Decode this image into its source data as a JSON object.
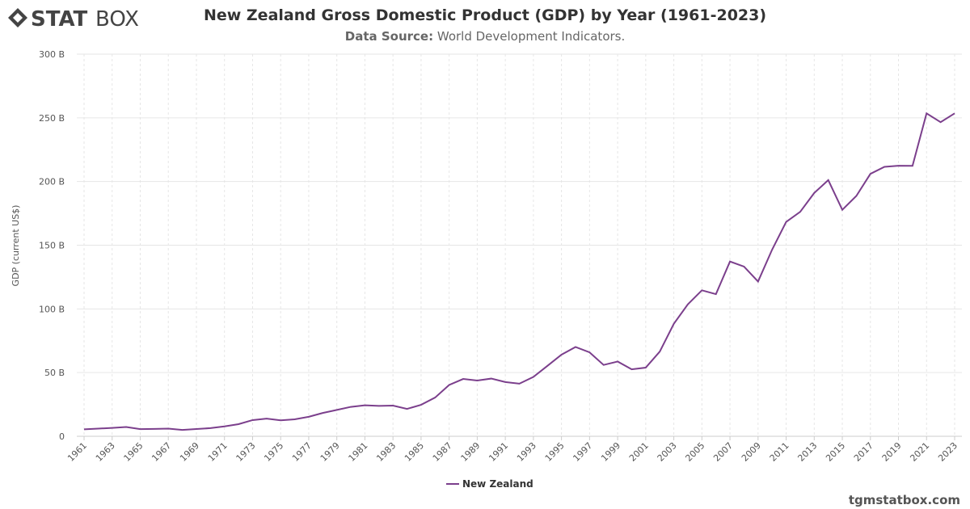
{
  "logo": {
    "bold": "STAT",
    "light": "BOX"
  },
  "footer": "tgmstatbox.com",
  "chart_data": {
    "type": "line",
    "title": "New Zealand Gross Domestic Product (GDP) by Year (1961-2023)",
    "subtitle_label": "Data Source:",
    "subtitle": "World Development Indicators.",
    "y_label": "GDP (current US$)",
    "x": [
      1961,
      1962,
      1963,
      1964,
      1965,
      1966,
      1967,
      1968,
      1969,
      1970,
      1971,
      1972,
      1973,
      1974,
      1975,
      1976,
      1977,
      1978,
      1979,
      1980,
      1981,
      1982,
      1983,
      1984,
      1985,
      1986,
      1987,
      1988,
      1989,
      1990,
      1991,
      1992,
      1993,
      1994,
      1995,
      1996,
      1997,
      1998,
      1999,
      2000,
      2001,
      2002,
      2003,
      2004,
      2005,
      2006,
      2007,
      2008,
      2009,
      2010,
      2011,
      2012,
      2013,
      2014,
      2015,
      2016,
      2017,
      2018,
      2019,
      2020,
      2021,
      2022,
      2023
    ],
    "series": [
      {
        "name": "New Zealand",
        "color": "#7b3f8c",
        "values": [
          5.5,
          6.0,
          6.6,
          7.3,
          5.6,
          5.8,
          6.0,
          5.0,
          5.7,
          6.4,
          7.8,
          9.5,
          12.7,
          13.9,
          12.5,
          13.3,
          15.3,
          18.3,
          20.7,
          23.1,
          24.3,
          23.9,
          24.1,
          21.5,
          24.7,
          30.4,
          40.3,
          45.0,
          43.8,
          45.3,
          42.6,
          41.3,
          46.6,
          55.3,
          64.1,
          70.1,
          65.9,
          56.0,
          58.7,
          52.6,
          53.9,
          66.5,
          88.3,
          103.6,
          114.6,
          111.6,
          137.2,
          133.2,
          121.5,
          146.5,
          168.3,
          176.2,
          191.0,
          201.1,
          177.8,
          188.7,
          206.0,
          211.5,
          212.4,
          212.3,
          253.5,
          246.6,
          253.5
        ]
      }
    ],
    "xlim": [
      1961,
      2023
    ],
    "xticks": [
      1961,
      1963,
      1965,
      1967,
      1969,
      1971,
      1973,
      1975,
      1977,
      1979,
      1981,
      1983,
      1985,
      1987,
      1989,
      1991,
      1993,
      1995,
      1997,
      1999,
      2001,
      2003,
      2005,
      2007,
      2009,
      2011,
      2013,
      2015,
      2017,
      2019,
      2021,
      2023
    ],
    "ylim": [
      0,
      300
    ],
    "yticks": [
      0,
      {
        "value": 50,
        "label": "50 B"
      },
      {
        "value": 100,
        "label": "100 B"
      },
      {
        "value": 150,
        "label": "150 B"
      },
      {
        "value": 200,
        "label": "200 B"
      },
      {
        "value": 250,
        "label": "250 B"
      },
      {
        "value": 300,
        "label": "300 B"
      }
    ],
    "grid": true,
    "legend": "bottom"
  }
}
